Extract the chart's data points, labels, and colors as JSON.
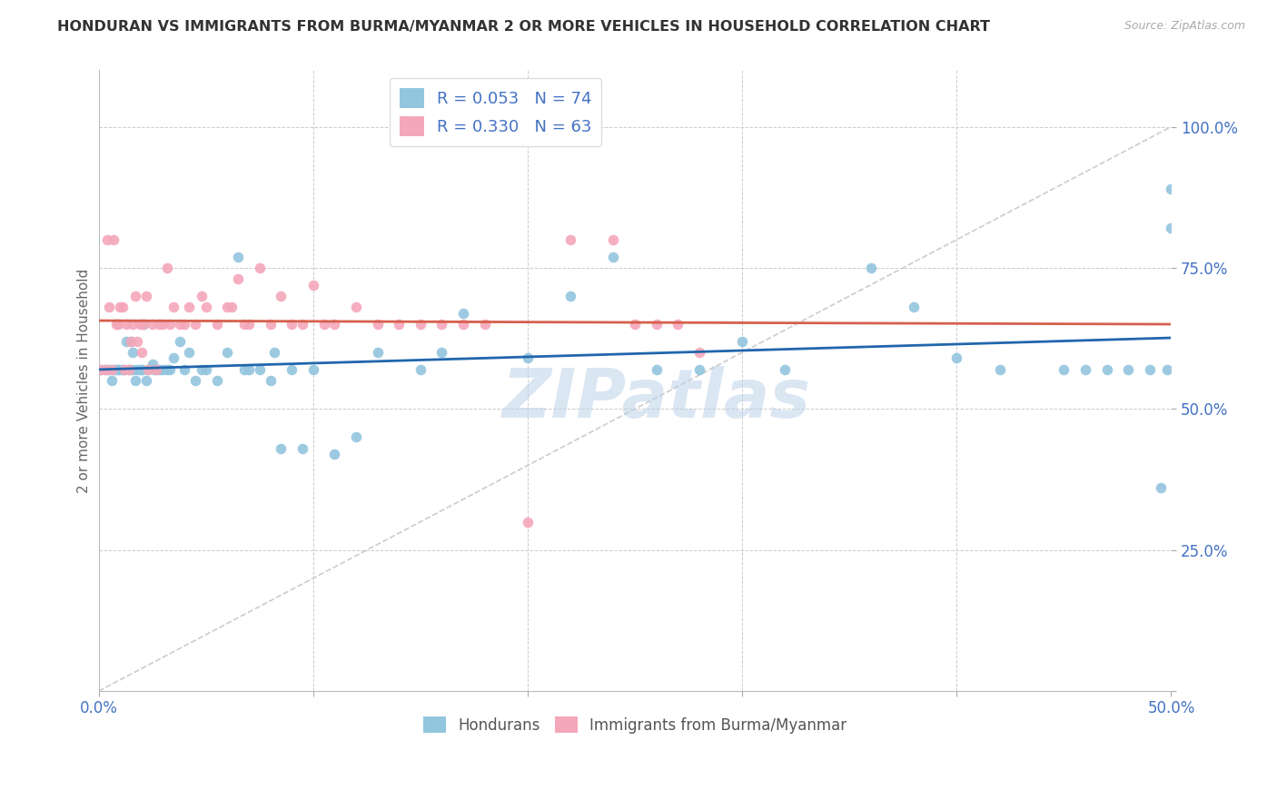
{
  "title": "HONDURAN VS IMMIGRANTS FROM BURMA/MYANMAR 2 OR MORE VEHICLES IN HOUSEHOLD CORRELATION CHART",
  "source": "Source: ZipAtlas.com",
  "ylabel": "2 or more Vehicles in Household",
  "legend_blue_label": "R = 0.053   N = 74",
  "legend_pink_label": "R = 0.330   N = 63",
  "legend_bottom_blue": "Hondurans",
  "legend_bottom_pink": "Immigrants from Burma/Myanmar",
  "color_blue": "#92c5de",
  "color_pink": "#f4a7b9",
  "color_blue_line": "#2166ac",
  "color_pink_line": "#d6604d",
  "color_diag_line": "#cccccc",
  "color_grid": "#cccccc",
  "color_ytick": "#4472c4",
  "color_xtick": "#4472c4",
  "background_color": "#ffffff",
  "watermark": "ZIPatlas",
  "xlim": [
    0.0,
    0.5
  ],
  "ylim": [
    0.0,
    110.0
  ],
  "ytick_vals": [
    0,
    25,
    50,
    75,
    100
  ],
  "ytick_labels": [
    "",
    "25.0%",
    "50.0%",
    "75.0%",
    "100.0%"
  ],
  "xtick_vals": [
    0.0,
    0.1,
    0.2,
    0.3,
    0.4,
    0.5
  ],
  "xtick_labels": [
    "0.0%",
    "",
    "",
    "",
    "",
    "50.0%"
  ],
  "blue_x": [
    0.001,
    0.003,
    0.005,
    0.006,
    0.007,
    0.008,
    0.009,
    0.01,
    0.011,
    0.012,
    0.013,
    0.014,
    0.015,
    0.016,
    0.016,
    0.017,
    0.018,
    0.019,
    0.02,
    0.02,
    0.021,
    0.022,
    0.023,
    0.025,
    0.026,
    0.028,
    0.03,
    0.032,
    0.033,
    0.035,
    0.038,
    0.04,
    0.042,
    0.045,
    0.048,
    0.05,
    0.055,
    0.06,
    0.065,
    0.068,
    0.07,
    0.075,
    0.08,
    0.082,
    0.085,
    0.09,
    0.095,
    0.1,
    0.11,
    0.12,
    0.13,
    0.15,
    0.16,
    0.17,
    0.2,
    0.22,
    0.24,
    0.26,
    0.28,
    0.3,
    0.32,
    0.36,
    0.38,
    0.4,
    0.42,
    0.45,
    0.46,
    0.47,
    0.48,
    0.49,
    0.495,
    0.498,
    0.5,
    0.5
  ],
  "blue_y": [
    57,
    57,
    57,
    55,
    57,
    57,
    57,
    57,
    57,
    57,
    62,
    57,
    62,
    57,
    60,
    55,
    57,
    57,
    57,
    57,
    65,
    55,
    57,
    58,
    57,
    57,
    57,
    57,
    57,
    59,
    62,
    57,
    60,
    55,
    57,
    57,
    55,
    60,
    77,
    57,
    57,
    57,
    55,
    60,
    43,
    57,
    43,
    57,
    42,
    45,
    60,
    57,
    60,
    67,
    59,
    70,
    77,
    57,
    57,
    62,
    57,
    75,
    68,
    59,
    57,
    57,
    57,
    57,
    57,
    57,
    36,
    57,
    89,
    82
  ],
  "pink_x": [
    0.001,
    0.003,
    0.004,
    0.005,
    0.006,
    0.007,
    0.008,
    0.009,
    0.01,
    0.011,
    0.012,
    0.013,
    0.014,
    0.015,
    0.016,
    0.017,
    0.018,
    0.019,
    0.02,
    0.021,
    0.022,
    0.023,
    0.025,
    0.027,
    0.028,
    0.03,
    0.032,
    0.033,
    0.035,
    0.038,
    0.04,
    0.042,
    0.045,
    0.048,
    0.05,
    0.055,
    0.06,
    0.062,
    0.065,
    0.068,
    0.07,
    0.075,
    0.08,
    0.085,
    0.09,
    0.095,
    0.1,
    0.105,
    0.11,
    0.12,
    0.13,
    0.14,
    0.15,
    0.16,
    0.17,
    0.18,
    0.2,
    0.22,
    0.24,
    0.25,
    0.26,
    0.27,
    0.28
  ],
  "pink_y": [
    57,
    57,
    80,
    68,
    57,
    80,
    65,
    65,
    68,
    68,
    57,
    65,
    57,
    62,
    65,
    70,
    62,
    65,
    60,
    65,
    70,
    57,
    65,
    57,
    65,
    65,
    75,
    65,
    68,
    65,
    65,
    68,
    65,
    70,
    68,
    65,
    68,
    68,
    73,
    65,
    65,
    75,
    65,
    70,
    65,
    65,
    72,
    65,
    65,
    68,
    65,
    65,
    65,
    65,
    65,
    65,
    30,
    80,
    80,
    65,
    65,
    65,
    60
  ]
}
